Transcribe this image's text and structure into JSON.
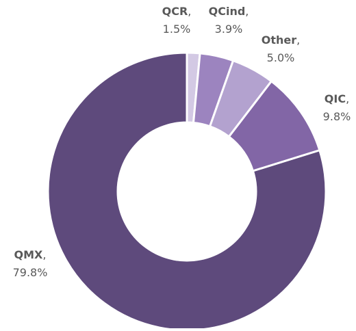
{
  "chart_data": {
    "type": "donut",
    "categories": [
      "QCR",
      "QCind",
      "Other",
      "QIC",
      "QMX"
    ],
    "separator": ",",
    "values": [
      1.5,
      3.9,
      5.0,
      9.8,
      79.8
    ],
    "value_labels": [
      "1.5%",
      "3.9%",
      "5.0%",
      "9.8%",
      "79.8%"
    ],
    "colors": [
      "#d3c9e4",
      "#9c84bf",
      "#b3a2cf",
      "#8266a6",
      "#5e4a7c"
    ]
  }
}
